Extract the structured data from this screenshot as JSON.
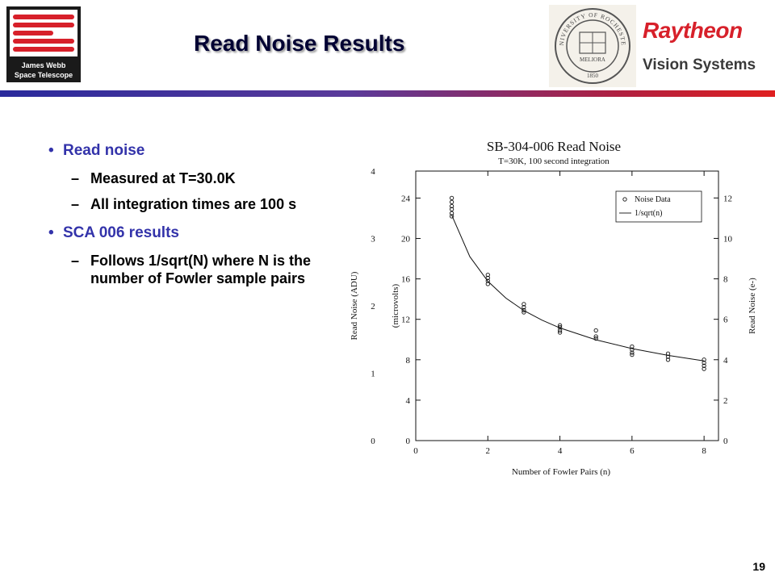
{
  "header": {
    "title": "Read Noise Results",
    "jwst_logo_line1": "James Webb",
    "jwst_logo_line2": "Space Telescope",
    "rochester_seal_text": "UNIVERSITY OF ROCHESTER",
    "rochester_motto": "MELIORA",
    "rochester_year": "1850",
    "raytheon": "Raytheon",
    "vision_systems": "Vision Systems"
  },
  "bullets": [
    {
      "text": "Read noise",
      "sub": [
        "Measured at T=30.0K",
        "All integration times are 100 s"
      ]
    },
    {
      "text": "SCA 006 results",
      "sub": [
        "Follows 1/sqrt(N) where N is the number of Fowler sample pairs"
      ]
    }
  ],
  "page_number": "19",
  "colors": {
    "title": "#000033",
    "bullet": "#3333aa",
    "raytheon_red": "#d7202a",
    "bar_left": "#2a2a9c",
    "bar_right": "#e02020"
  },
  "chart_data": {
    "type": "scatter",
    "title": "SB-304-006 Read Noise",
    "subtitle": "T=30K, 100 second integration",
    "xlabel": "Number of Fowler Pairs (n)",
    "ylabel_outer": "Read Noise (ADU)",
    "ylabel_inner": "(microvolts)",
    "ylabel_right": "Read Noise (e-)",
    "xlim": [
      0,
      8.4
    ],
    "x_ticks": [
      0,
      2,
      4,
      6,
      8
    ],
    "y_adu_lim": [
      0,
      4
    ],
    "y_adu_ticks": [
      0,
      1,
      2,
      3,
      4
    ],
    "y_uv_lim": [
      0,
      26.67
    ],
    "y_uv_ticks": [
      0,
      4,
      8,
      12,
      16,
      20,
      24
    ],
    "y_e_lim": [
      0,
      13.33
    ],
    "y_e_ticks": [
      0,
      2,
      4,
      6,
      8,
      10,
      12
    ],
    "legend": {
      "placement": "top-right",
      "entries": [
        "Noise Data",
        "1/sqrt(n)"
      ]
    },
    "series": [
      {
        "name": "Noise Data",
        "style": "circles",
        "points": [
          [
            1,
            24.0
          ],
          [
            1,
            23.6
          ],
          [
            1,
            23.2
          ],
          [
            1,
            22.9
          ],
          [
            1,
            22.5
          ],
          [
            1,
            22.2
          ],
          [
            2,
            16.4
          ],
          [
            2,
            16.1
          ],
          [
            2,
            15.8
          ],
          [
            2,
            15.5
          ],
          [
            3,
            13.5
          ],
          [
            3,
            13.2
          ],
          [
            3,
            12.9
          ],
          [
            3,
            12.7
          ],
          [
            4,
            11.4
          ],
          [
            4,
            11.2
          ],
          [
            4,
            10.9
          ],
          [
            4,
            10.7
          ],
          [
            5,
            10.9
          ],
          [
            5,
            10.3
          ],
          [
            5,
            10.1
          ],
          [
            6,
            9.3
          ],
          [
            6,
            9.0
          ],
          [
            6,
            8.7
          ],
          [
            6,
            8.5
          ],
          [
            7,
            8.6
          ],
          [
            7,
            8.3
          ],
          [
            7,
            8.0
          ],
          [
            8,
            8.0
          ],
          [
            8,
            7.7
          ],
          [
            8,
            7.4
          ],
          [
            8,
            7.1
          ]
        ]
      },
      {
        "name": "1/sqrt(n)",
        "style": "line",
        "points": [
          [
            1,
            22.3
          ],
          [
            1.5,
            18.2
          ],
          [
            2,
            15.77
          ],
          [
            2.5,
            14.1
          ],
          [
            3,
            12.87
          ],
          [
            3.5,
            11.92
          ],
          [
            4,
            11.15
          ],
          [
            5,
            9.97
          ],
          [
            6,
            9.1
          ],
          [
            7,
            8.43
          ],
          [
            8,
            7.88
          ]
        ]
      }
    ]
  }
}
